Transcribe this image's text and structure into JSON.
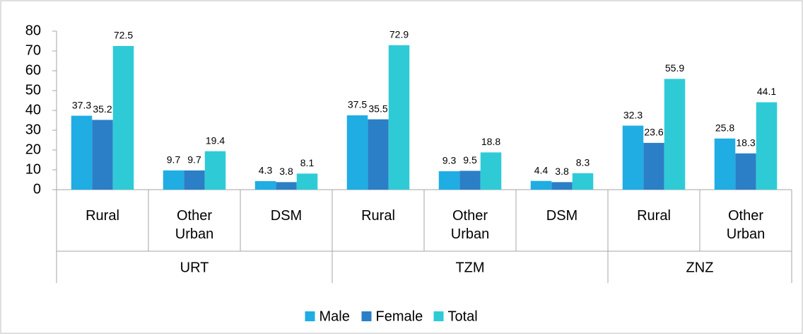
{
  "chart_data": {
    "type": "bar",
    "groups": [
      {
        "name": "URT",
        "categories": [
          "Rural",
          "Other Urban",
          "DSM"
        ]
      },
      {
        "name": "TZM",
        "categories": [
          "Rural",
          "Other Urban",
          "DSM"
        ]
      },
      {
        "name": "ZNZ",
        "categories": [
          "Rural",
          "Other Urban"
        ]
      }
    ],
    "series": [
      {
        "name": "Male",
        "color": "#1fade3",
        "values": [
          37.3,
          9.7,
          4.3,
          37.5,
          9.3,
          4.4,
          32.3,
          25.8
        ]
      },
      {
        "name": "Female",
        "color": "#2a7fc7",
        "values": [
          35.2,
          9.7,
          3.8,
          35.5,
          9.5,
          3.8,
          23.6,
          18.3
        ]
      },
      {
        "name": "Total",
        "color": "#2ecbd7",
        "values": [
          72.5,
          19.4,
          8.1,
          72.9,
          18.8,
          8.3,
          55.9,
          44.1
        ]
      }
    ],
    "ylim": [
      0,
      80
    ],
    "yticks": [
      0,
      10,
      20,
      30,
      40,
      50,
      60,
      70,
      80
    ],
    "legend": "bottom"
  }
}
